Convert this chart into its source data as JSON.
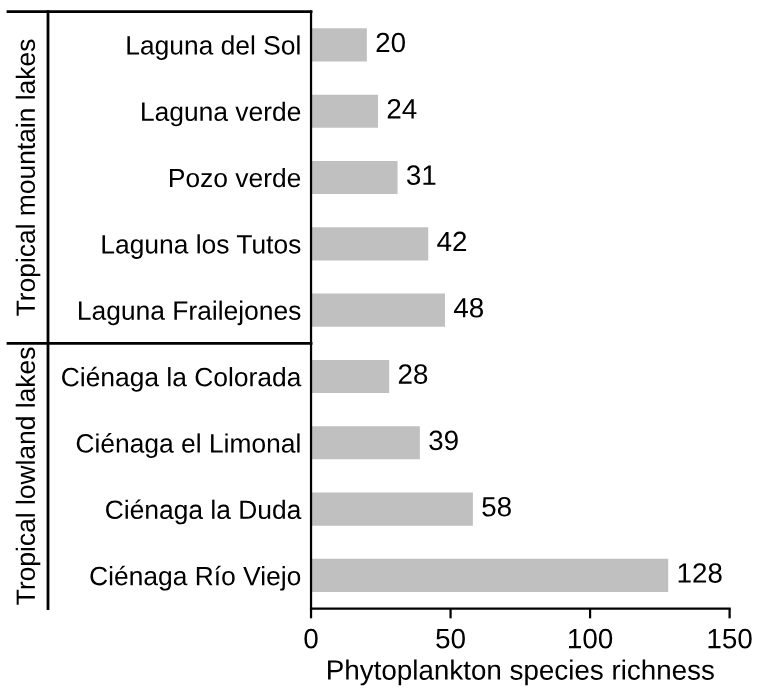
{
  "chart_data": {
    "type": "bar",
    "orientation": "horizontal",
    "categories": [
      "Laguna del Sol",
      "Laguna verde",
      "Pozo verde",
      "Laguna los Tutos",
      "Laguna Frailejones",
      "Ciénaga la Colorada",
      "Ciénaga el Limonal",
      "Ciénaga la Duda",
      "Ciénaga Río Viejo"
    ],
    "values": [
      20,
      24,
      31,
      42,
      48,
      28,
      39,
      58,
      128
    ],
    "color": "#c0c0c0",
    "data_labels": true,
    "xlim": [
      0,
      150
    ],
    "xticks": [
      0,
      50,
      100,
      150
    ],
    "xlabel": "Phytoplankton species richness",
    "annotations": [
      "Tropical mountain lakes",
      "Tropical lowland lakes"
    ],
    "grid": false,
    "legend": false
  }
}
